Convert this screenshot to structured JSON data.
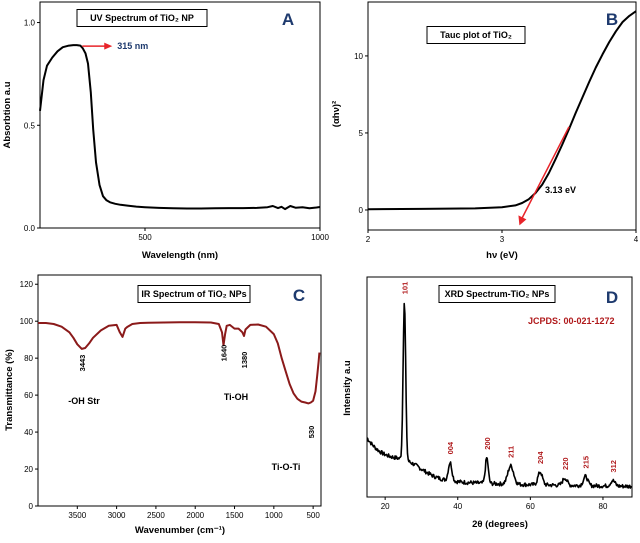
{
  "colors": {
    "accent_red": "#e8242a",
    "ir_line": "#8b1a1a",
    "label_red": "#b0191b",
    "panel_letter": "#1e3a6e"
  },
  "chart_data": [
    {
      "id": "A",
      "type": "line",
      "letter": "A",
      "title": "UV Spectrum of TiO₂ NP",
      "xlabel": "Wavelength (nm)",
      "ylabel": "Absorbtion a.u",
      "xlim": [
        200,
        1000
      ],
      "ylim": [
        0,
        1.1
      ],
      "xticks": [
        500,
        1000
      ],
      "yticks": [
        0.0,
        0.5,
        1.0
      ],
      "series": [
        {
          "name": "TiO2 NP",
          "x": [
            200,
            210,
            220,
            235,
            250,
            265,
            280,
            295,
            305,
            315,
            322,
            330,
            337,
            345,
            352,
            360,
            370,
            380,
            390,
            400,
            415,
            430,
            450,
            475,
            500,
            540,
            580,
            620,
            660,
            700,
            740,
            780,
            820,
            850,
            865,
            880,
            890,
            900,
            915,
            930,
            950,
            970,
            990,
            1000
          ],
          "y": [
            0.57,
            0.72,
            0.79,
            0.83,
            0.86,
            0.88,
            0.887,
            0.89,
            0.89,
            0.888,
            0.875,
            0.85,
            0.8,
            0.66,
            0.48,
            0.32,
            0.21,
            0.155,
            0.135,
            0.125,
            0.118,
            0.113,
            0.109,
            0.104,
            0.101,
            0.098,
            0.096,
            0.095,
            0.095,
            0.096,
            0.097,
            0.097,
            0.098,
            0.101,
            0.107,
            0.097,
            0.103,
            0.092,
            0.107,
            0.099,
            0.101,
            0.096,
            0.1,
            0.102
          ]
        }
      ],
      "annotations": [
        {
          "text": "315 nm",
          "x": 315,
          "y": 0.89
        }
      ]
    },
    {
      "id": "B",
      "type": "line",
      "letter": "B",
      "title": "Tauc plot of TiO₂",
      "xlabel": "hν (eV)",
      "ylabel": "(αhν)²",
      "xlim": [
        2,
        4
      ],
      "ylim": [
        -1.3,
        13.5
      ],
      "xticks": [
        2,
        3,
        4
      ],
      "yticks": [
        0,
        5,
        10
      ],
      "series": [
        {
          "name": "Tauc",
          "x": [
            2.0,
            2.4,
            2.8,
            3.0,
            3.1,
            3.15,
            3.2,
            3.25,
            3.3,
            3.35,
            3.4,
            3.45,
            3.5,
            3.55,
            3.6,
            3.65,
            3.7,
            3.75,
            3.8,
            3.85,
            3.9,
            3.95,
            4.0
          ],
          "y": [
            0.05,
            0.07,
            0.1,
            0.18,
            0.3,
            0.45,
            0.7,
            1.1,
            1.65,
            2.4,
            3.3,
            4.25,
            5.25,
            6.3,
            7.3,
            8.3,
            9.25,
            10.1,
            10.9,
            11.6,
            12.2,
            12.6,
            12.9
          ]
        }
      ],
      "annotations": [
        {
          "text": "3.13 eV",
          "x": 3.13,
          "y": 0
        }
      ]
    },
    {
      "id": "C",
      "type": "line",
      "letter": "C",
      "title": "IR Spectrum of TiO₂ NPs",
      "xlabel": "Wavenumber (cm⁻¹)",
      "ylabel": "Transmittance (%)",
      "xlim": [
        4000,
        400
      ],
      "ylim": [
        0,
        125
      ],
      "xticks": [
        3500,
        3000,
        2500,
        2000,
        1500,
        1000,
        500
      ],
      "yticks": [
        0,
        20,
        40,
        60,
        80,
        100,
        120
      ],
      "series": [
        {
          "name": "IR",
          "x": [
            4000,
            3900,
            3800,
            3700,
            3600,
            3550,
            3500,
            3443,
            3400,
            3350,
            3300,
            3200,
            3100,
            3000,
            2960,
            2925,
            2890,
            2860,
            2800,
            2700,
            2600,
            2400,
            2200,
            2000,
            1800,
            1700,
            1660,
            1640,
            1620,
            1600,
            1560,
            1500,
            1450,
            1400,
            1380,
            1360,
            1300,
            1200,
            1100,
            1000,
            950,
            900,
            850,
            800,
            750,
            700,
            650,
            600,
            560,
            530,
            500,
            470,
            450,
            430,
            420
          ],
          "y": [
            99,
            99,
            98.5,
            97,
            94,
            91,
            87.5,
            85,
            85.5,
            88,
            91,
            95,
            97.5,
            98,
            94,
            91.5,
            96,
            97,
            98.5,
            99,
            99.2,
            99.3,
            99.4,
            99.4,
            99.3,
            98.5,
            94,
            87,
            93,
            97.5,
            98,
            96,
            96,
            94,
            92,
            95.5,
            98,
            98.2,
            97,
            93,
            88,
            80,
            73,
            66,
            61,
            58,
            56.5,
            56,
            55.5,
            56,
            57,
            62,
            70,
            78,
            83
          ]
        }
      ],
      "peak_labels": [
        {
          "text": "3443",
          "x": 3443
        },
        {
          "text": "1640",
          "x": 1640
        },
        {
          "text": "1380",
          "x": 1380
        },
        {
          "text": "530",
          "x": 530
        }
      ],
      "group_labels": [
        {
          "text": "-OH Str"
        },
        {
          "text": "Ti-OH"
        },
        {
          "text": "Ti-O-Ti"
        }
      ]
    },
    {
      "id": "D",
      "type": "line",
      "letter": "D",
      "title": "XRD Spectrum-TiO₂ NPs",
      "xlabel": "2θ (degrees)",
      "ylabel": "Intensity a.u",
      "xlim": [
        15,
        88
      ],
      "ylim": [
        0,
        120
      ],
      "xticks": [
        20,
        40,
        60,
        80
      ],
      "yticks": [],
      "reference": "JCPDS: 00-021-1272",
      "peaks": [
        {
          "label": "101",
          "x": 25.3,
          "h": 86,
          "w": 0.35
        },
        {
          "label": "004",
          "x": 37.9,
          "h": 10,
          "w": 0.5
        },
        {
          "label": "200",
          "x": 48.0,
          "h": 14,
          "w": 0.4
        },
        {
          "label": "211",
          "x": 54.6,
          "h": 10,
          "w": 0.8
        },
        {
          "label": "204",
          "x": 62.7,
          "h": 7,
          "w": 0.6
        },
        {
          "label": "220",
          "x": 69.5,
          "h": 4,
          "w": 0.6
        },
        {
          "label": "215",
          "x": 75.2,
          "h": 5,
          "w": 0.6
        },
        {
          "label": "312",
          "x": 82.7,
          "h": 3,
          "w": 0.6
        }
      ]
    }
  ]
}
